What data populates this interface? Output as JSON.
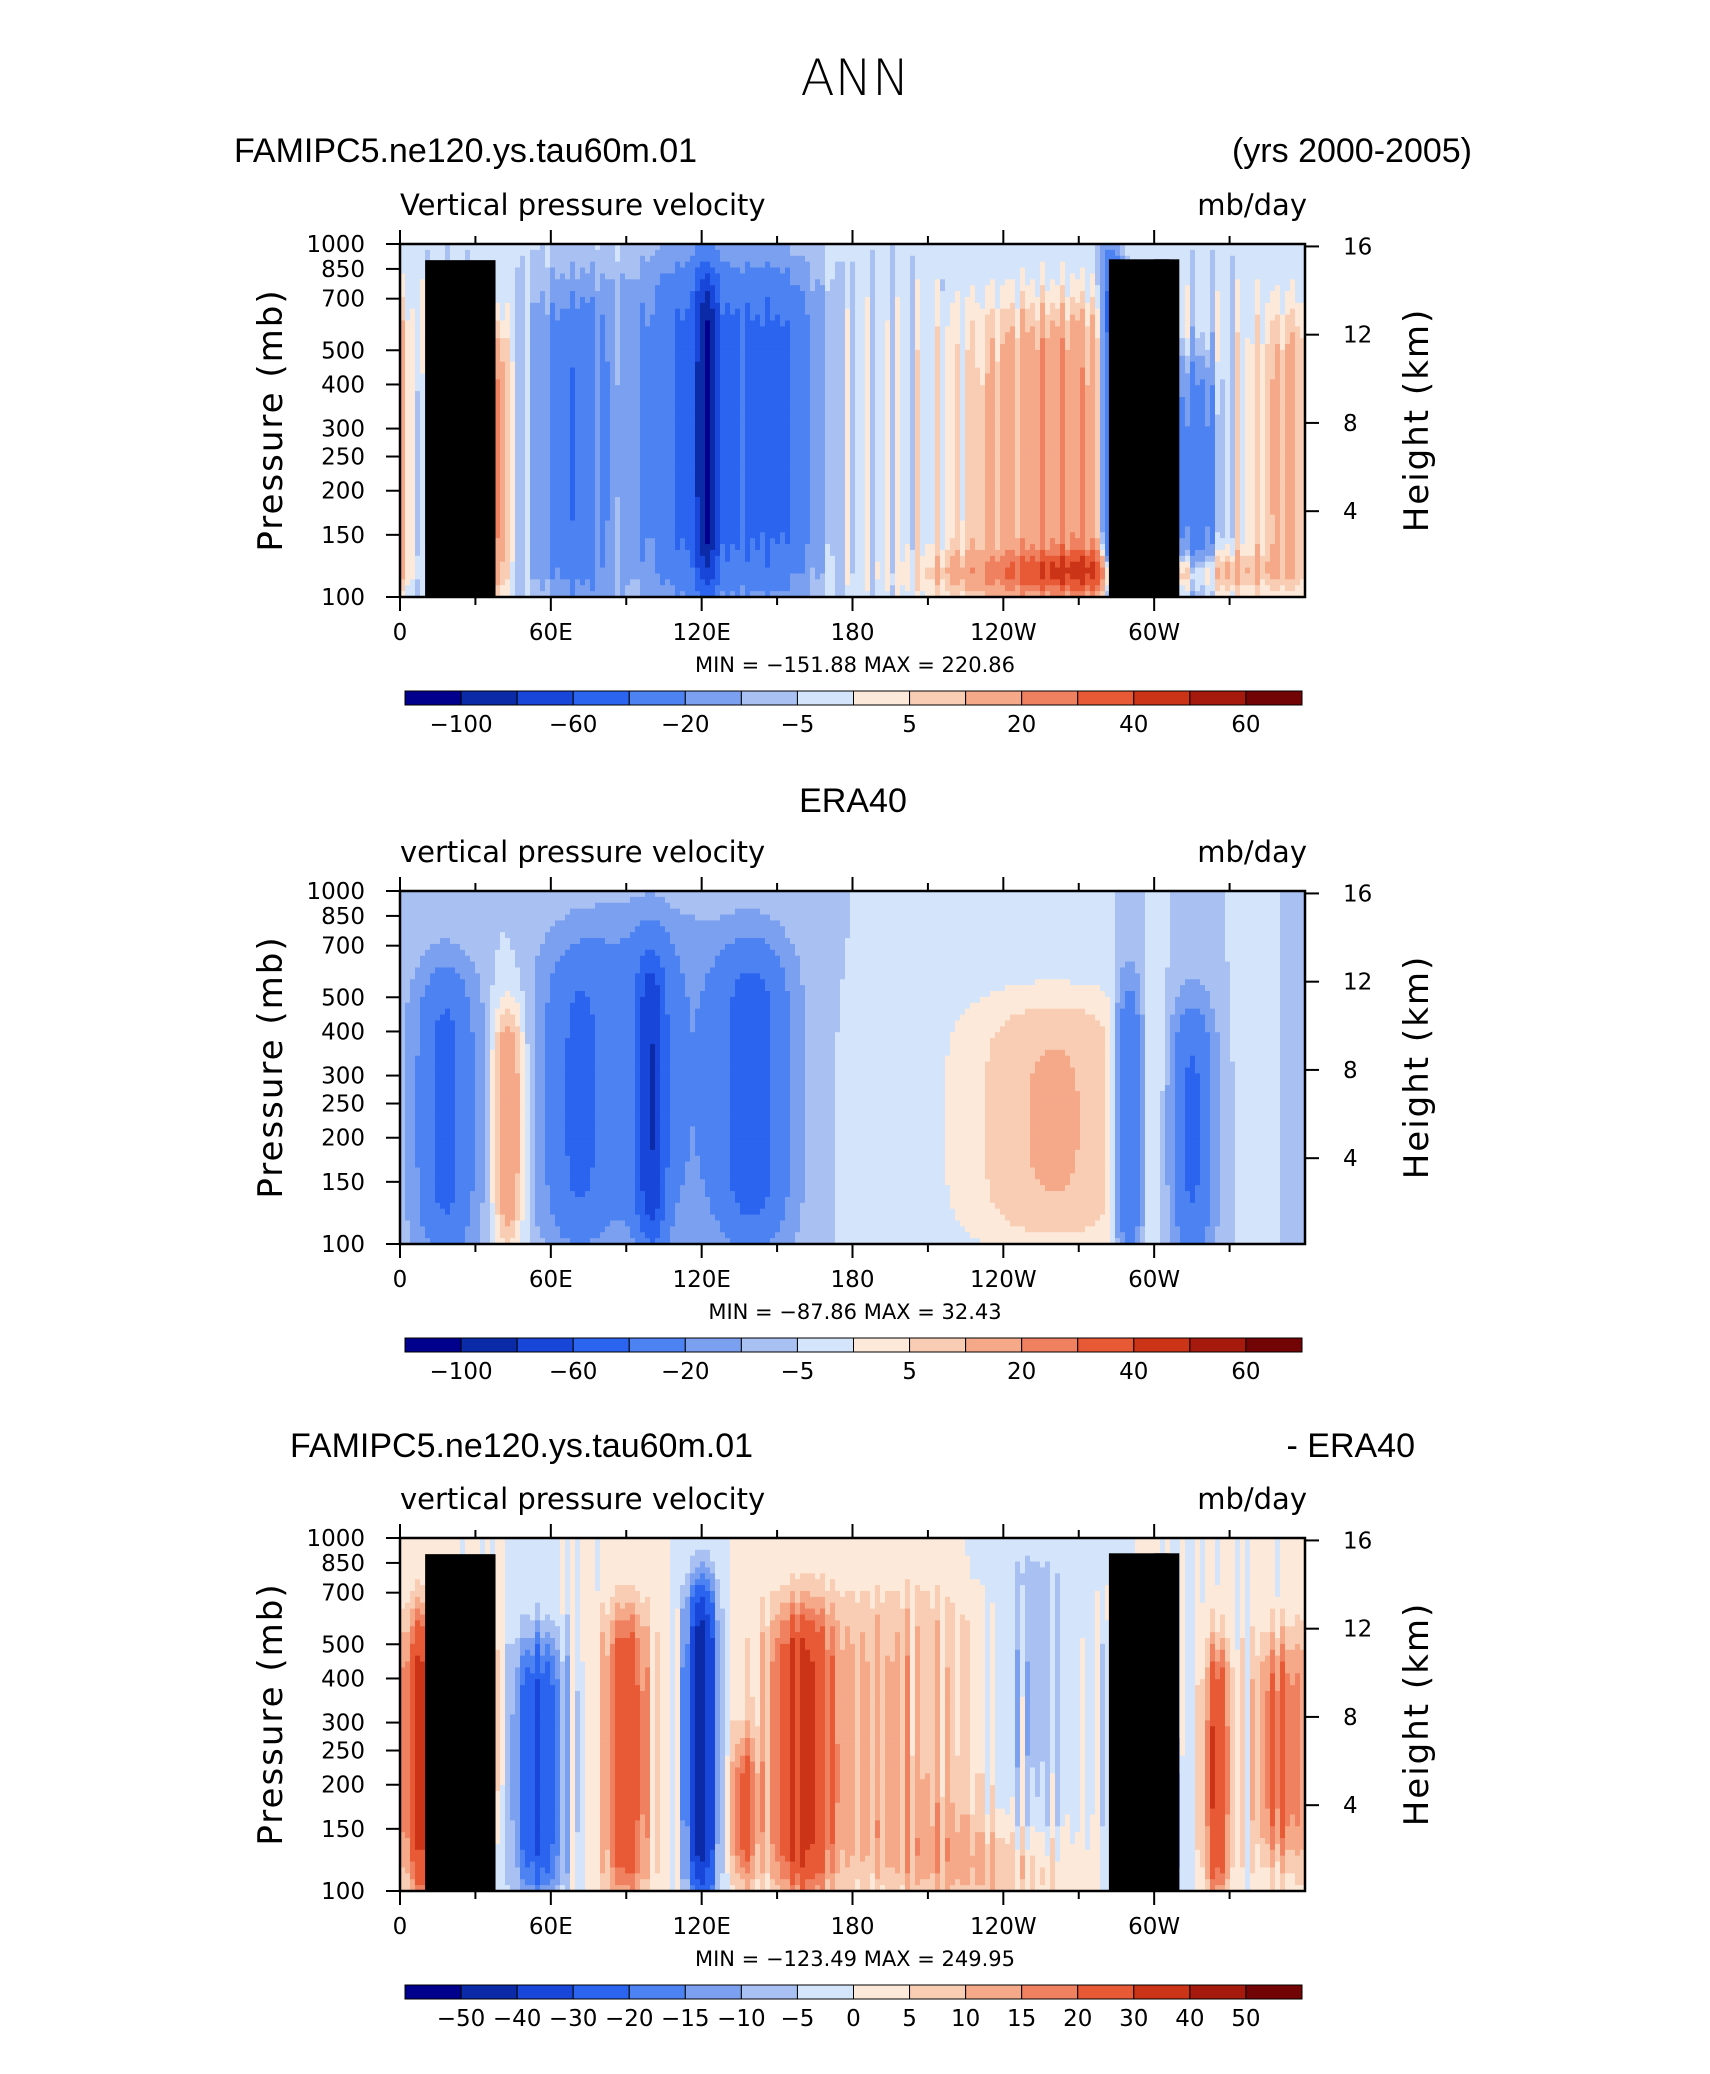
{
  "figure": {
    "title": "ANN",
    "case_name": "FAMIPC5.ne120.ys.tau60m.01",
    "years": "(yrs 2000-2005)"
  },
  "colors": {
    "palette": [
      "#00008c",
      "#0a2aa8",
      "#1846d8",
      "#2b64ee",
      "#4c82f2",
      "#7ba0f0",
      "#a8c0f2",
      "#d4e4fa",
      "#fde9d9",
      "#f9cdb4",
      "#f5a989",
      "#ef8060",
      "#e85a35",
      "#cc3418",
      "#a51a0c",
      "#730406"
    ],
    "land": "#000000",
    "axis": "#000000"
  },
  "chart_data": [
    {
      "type": "heatmap",
      "id": "model",
      "case_title_left": "FAMIPC5.ne120.ys.tau60m.01",
      "case_title_right": "(yrs 2000-2005)",
      "variable_label": "Vertical pressure velocity",
      "units_label": "mb/day",
      "ylabel": "Pressure (mb)",
      "ylabel_right": "Height (km)",
      "x_ticks": [
        "0",
        "60E",
        "120E",
        "180",
        "120W",
        "60W"
      ],
      "y_ticks": [
        "100",
        "150",
        "200",
        "250",
        "300",
        "400",
        "500",
        "700",
        "850",
        "1000"
      ],
      "y_right_ticks": [
        "16",
        "12",
        "8",
        "4"
      ],
      "stats": "MIN = −151.88   MAX = 220.86",
      "colorbar_labels": [
        "−100",
        "−60",
        "−20",
        "−5",
        "5",
        "20",
        "40",
        "60"
      ],
      "contour_levels": [
        -100,
        -80,
        -60,
        -40,
        -20,
        -10,
        -5,
        0,
        5,
        10,
        20,
        30,
        40,
        50,
        60
      ],
      "xlim": [
        0,
        360
      ],
      "ylim": [
        1000,
        100
      ],
      "topography": true
    },
    {
      "type": "heatmap",
      "id": "obs",
      "case_title_center": "ERA40",
      "variable_label": "vertical pressure velocity",
      "units_label": "mb/day",
      "ylabel": "Pressure (mb)",
      "ylabel_right": "Height (km)",
      "x_ticks": [
        "0",
        "60E",
        "120E",
        "180",
        "120W",
        "60W"
      ],
      "y_ticks": [
        "100",
        "150",
        "200",
        "250",
        "300",
        "400",
        "500",
        "700",
        "850",
        "1000"
      ],
      "y_right_ticks": [
        "16",
        "12",
        "8",
        "4"
      ],
      "stats": "MIN = −87.86   MAX =   32.43",
      "colorbar_labels": [
        "−100",
        "−60",
        "−20",
        "−5",
        "5",
        "20",
        "40",
        "60"
      ],
      "contour_levels": [
        -100,
        -80,
        -60,
        -40,
        -20,
        -10,
        -5,
        0,
        5,
        10,
        20,
        30,
        40,
        50,
        60
      ],
      "xlim": [
        0,
        360
      ],
      "ylim": [
        1000,
        100
      ],
      "topography": false
    },
    {
      "type": "heatmap",
      "id": "diff",
      "case_title_left": "FAMIPC5.ne120.ys.tau60m.01",
      "case_title_right": "- ERA40",
      "variable_label": "vertical pressure velocity",
      "units_label": "mb/day",
      "ylabel": "Pressure (mb)",
      "ylabel_right": "Height (km)",
      "x_ticks": [
        "0",
        "60E",
        "120E",
        "180",
        "120W",
        "60W"
      ],
      "y_ticks": [
        "100",
        "150",
        "200",
        "250",
        "300",
        "400",
        "500",
        "700",
        "850",
        "1000"
      ],
      "y_right_ticks": [
        "16",
        "12",
        "8",
        "4"
      ],
      "stats": "MIN = −123.49   MAX =  249.95",
      "colorbar_labels": [
        "−50",
        "−40",
        "−30",
        "−20",
        "−15",
        "−10",
        "−5",
        "0",
        "5",
        "10",
        "15",
        "20",
        "30",
        "40",
        "50"
      ],
      "contour_levels": [
        -50,
        -40,
        -30,
        -20,
        -15,
        -10,
        -5,
        0,
        5,
        10,
        15,
        20,
        30,
        40,
        50
      ],
      "xlim": [
        0,
        360
      ],
      "ylim": [
        1000,
        100
      ],
      "topography": true
    }
  ]
}
